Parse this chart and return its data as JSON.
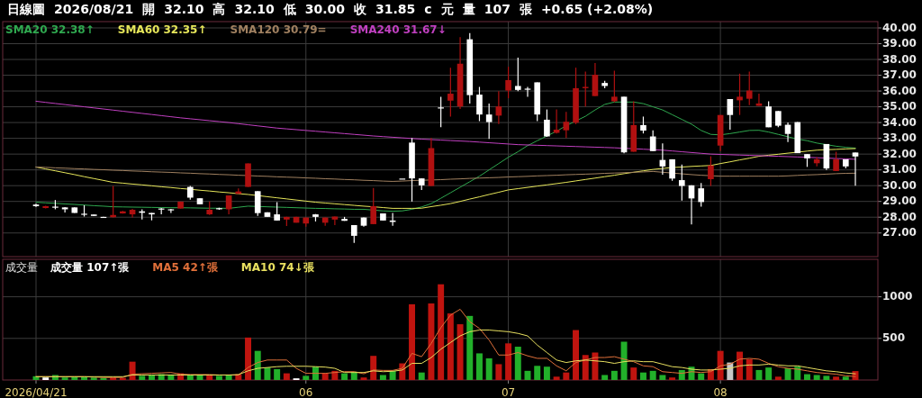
{
  "chart_data": [
    {
      "type": "candlestick",
      "categories": [
        "2026/04/21",
        null,
        null,
        null,
        null,
        null,
        null,
        null,
        null,
        null,
        null,
        null,
        null,
        null,
        null,
        null,
        null,
        null,
        null,
        null,
        null,
        null,
        null,
        null,
        null,
        null,
        null,
        null,
        "06",
        null,
        null,
        null,
        null,
        null,
        null,
        null,
        null,
        null,
        null,
        null,
        null,
        null,
        null,
        null,
        null,
        null,
        null,
        null,
        null,
        "07",
        null,
        null,
        null,
        null,
        null,
        null,
        null,
        null,
        null,
        null,
        null,
        null,
        null,
        null,
        null,
        null,
        null,
        null,
        null,
        null,
        null,
        "08",
        null,
        null,
        null,
        null,
        null,
        null,
        null,
        null,
        null,
        null,
        null,
        null,
        null,
        null
      ],
      "ohlc": [
        [
          28.8,
          28.85,
          28.65,
          28.7
        ],
        [
          28.58,
          28.72,
          28.56,
          28.7
        ],
        [
          28.67,
          29.09,
          28.5,
          28.64
        ],
        [
          28.62,
          28.64,
          28.3,
          28.5
        ],
        [
          28.62,
          28.62,
          28.27,
          28.27
        ],
        [
          28.22,
          28.76,
          28.04,
          28.18
        ],
        [
          28.17,
          28.17,
          28.08,
          28.08
        ],
        [
          28.02,
          28.02,
          27.99,
          27.99
        ],
        [
          28.0,
          29.98,
          27.99,
          28.14
        ],
        [
          28.24,
          28.4,
          28.22,
          28.37
        ],
        [
          28.18,
          28.52,
          27.98,
          28.47
        ],
        [
          28.37,
          28.5,
          27.85,
          28.28
        ],
        [
          28.27,
          28.27,
          27.8,
          28.18
        ],
        [
          28.55,
          28.58,
          28.18,
          28.52
        ],
        [
          28.5,
          28.52,
          28.27,
          28.47
        ],
        [
          28.55,
          28.99,
          28.55,
          28.99
        ],
        [
          29.92,
          29.98,
          29.11,
          29.24
        ],
        [
          29.2,
          29.2,
          28.82,
          28.82
        ],
        [
          28.18,
          28.99,
          28.14,
          28.47
        ],
        [
          28.57,
          28.6,
          28.47,
          28.5
        ],
        [
          28.5,
          29.38,
          28.18,
          29.38
        ],
        [
          29.48,
          29.83,
          29.48,
          29.63
        ],
        [
          29.92,
          31.41,
          29.92,
          31.41
        ],
        [
          29.65,
          29.65,
          28.08,
          28.26
        ],
        [
          28.31,
          28.31,
          28.02,
          28.02
        ],
        [
          28.18,
          28.95,
          27.79,
          27.79
        ],
        [
          27.85,
          28.02,
          27.44,
          28.02
        ],
        [
          27.65,
          28.02,
          27.65,
          28.02
        ],
        [
          27.6,
          27.98,
          27.4,
          27.98
        ],
        [
          28.18,
          28.2,
          27.73,
          28.02
        ],
        [
          27.65,
          27.98,
          27.46,
          27.98
        ],
        [
          27.85,
          28.04,
          27.5,
          28.04
        ],
        [
          27.89,
          28.02,
          27.77,
          27.77
        ],
        [
          27.5,
          27.5,
          26.37,
          26.82
        ],
        [
          27.98,
          27.98,
          27.4,
          27.46
        ],
        [
          27.56,
          29.86,
          27.56,
          28.7
        ],
        [
          28.24,
          28.24,
          27.79,
          27.79
        ],
        [
          27.79,
          28.27,
          27.46,
          27.7
        ],
        [
          30.45,
          30.45,
          30.45,
          30.45
        ],
        [
          32.73,
          33.02,
          28.99,
          30.46
        ],
        [
          30.46,
          30.46,
          29.73,
          30.02
        ],
        [
          29.98,
          33.02,
          29.98,
          32.38
        ],
        [
          34.96,
          35.64,
          33.7,
          34.9
        ],
        [
          35.39,
          37.48,
          34.38,
          35.83
        ],
        [
          35.02,
          39.42,
          34.86,
          37.73
        ],
        [
          39.28,
          39.67,
          35.21,
          35.74
        ],
        [
          35.77,
          36.26,
          34.09,
          34.51
        ],
        [
          34.51,
          35.21,
          32.96,
          34.03
        ],
        [
          34.44,
          35.99,
          33.9,
          35.02
        ],
        [
          36.03,
          37.54,
          35.54,
          36.69
        ],
        [
          36.32,
          38.12,
          35.99,
          36.07
        ],
        [
          36.15,
          36.26,
          35.64,
          36.1
        ],
        [
          36.55,
          36.55,
          34.09,
          34.51
        ],
        [
          34.18,
          34.83,
          33.1,
          33.12
        ],
        [
          33.35,
          34.83,
          33.31,
          33.55
        ],
        [
          33.51,
          34.67,
          33.02,
          34.05
        ],
        [
          33.99,
          37.48,
          33.9,
          36.18
        ],
        [
          36.18,
          37.23,
          35.02,
          36.26
        ],
        [
          35.68,
          37.77,
          35.68,
          37.03
        ],
        [
          36.51,
          36.65,
          36.18,
          36.32
        ],
        [
          35.35,
          37.29,
          35.29,
          35.64
        ],
        [
          35.64,
          35.64,
          32.05,
          32.11
        ],
        [
          32.15,
          35.35,
          32.15,
          33.84
        ],
        [
          33.84,
          34.38,
          33.31,
          33.49
        ],
        [
          33.12,
          33.51,
          32.19,
          32.19
        ],
        [
          31.63,
          32.68,
          30.7,
          31.22
        ],
        [
          31.67,
          31.67,
          30.31,
          30.45
        ],
        [
          30.35,
          31.34,
          29.05,
          29.98
        ],
        [
          30.02,
          30.02,
          27.54,
          29.19
        ],
        [
          29.83,
          30.16,
          28.67,
          28.96
        ],
        [
          30.41,
          31.86,
          29.98,
          31.28
        ],
        [
          32.54,
          34.48,
          32.19,
          34.48
        ],
        [
          35.49,
          35.49,
          33.55,
          34.48
        ],
        [
          35.41,
          37.1,
          34.48,
          35.64
        ],
        [
          35.51,
          37.23,
          35.1,
          36.03
        ],
        [
          35.06,
          35.84,
          35.06,
          35.21
        ],
        [
          35.02,
          35.35,
          33.7,
          33.7
        ],
        [
          34.73,
          34.73,
          33.7,
          33.8
        ],
        [
          33.86,
          34.0,
          32.77,
          33.28
        ],
        [
          34.03,
          34.03,
          32.06,
          32.06
        ],
        [
          32.0,
          32.0,
          31.19,
          31.73
        ],
        [
          31.42,
          31.81,
          31.22,
          31.67
        ],
        [
          32.64,
          32.64,
          31.0,
          31.09
        ],
        [
          30.93,
          32.15,
          30.93,
          31.67
        ],
        [
          31.67,
          31.67,
          31.09,
          31.22
        ],
        [
          32.1,
          32.1,
          30.0,
          31.85
        ]
      ],
      "series": [
        {
          "name": "SMA20 32.38↑",
          "type": "line",
          "color": "#2fa84f",
          "values": [
            28.95,
            28.91,
            28.88,
            28.84,
            28.81,
            28.77,
            28.73,
            28.7,
            28.66,
            28.65,
            28.64,
            28.63,
            28.62,
            28.61,
            28.6,
            28.6,
            28.59,
            28.58,
            28.57,
            28.57,
            28.56,
            28.63,
            28.7,
            28.68,
            28.66,
            28.64,
            28.62,
            28.6,
            28.58,
            28.56,
            28.55,
            28.53,
            28.52,
            28.5,
            28.5,
            28.45,
            28.4,
            28.38,
            28.4,
            28.5,
            28.65,
            28.86,
            29.2,
            29.55,
            29.9,
            30.25,
            30.6,
            31.0,
            31.4,
            31.8,
            32.15,
            32.54,
            32.85,
            33.15,
            33.45,
            33.8,
            34.1,
            34.4,
            34.8,
            35.15,
            35.3,
            35.3,
            35.3,
            35.2,
            35.0,
            34.8,
            34.5,
            34.2,
            33.9,
            33.5,
            33.25,
            33.22,
            33.3,
            33.4,
            33.5,
            33.51,
            33.4,
            33.25,
            33.1,
            32.95,
            32.85,
            32.7,
            32.6,
            32.5,
            32.43,
            32.38
          ]
        },
        {
          "name": "SMA60 32.35↑",
          "type": "line",
          "color": "#e6e65a",
          "values": [
            31.18,
            31.06,
            30.94,
            30.82,
            30.7,
            30.57,
            30.45,
            30.33,
            30.21,
            30.16,
            30.1,
            30.05,
            29.99,
            29.93,
            29.88,
            29.82,
            29.77,
            29.71,
            29.66,
            29.6,
            29.55,
            29.49,
            29.44,
            29.37,
            29.3,
            29.23,
            29.16,
            29.09,
            29.02,
            28.95,
            28.9,
            28.85,
            28.8,
            28.75,
            28.7,
            28.66,
            28.61,
            28.56,
            28.56,
            28.56,
            28.57,
            28.67,
            28.76,
            28.86,
            29.0,
            29.15,
            29.29,
            29.44,
            29.58,
            29.73,
            29.81,
            29.89,
            29.97,
            30.05,
            30.13,
            30.21,
            30.3,
            30.39,
            30.48,
            30.57,
            30.66,
            30.76,
            30.85,
            30.94,
            31.03,
            31.09,
            31.15,
            31.18,
            31.22,
            31.25,
            31.28,
            31.4,
            31.51,
            31.63,
            31.74,
            31.86,
            31.93,
            31.99,
            32.06,
            32.12,
            32.19,
            32.25,
            32.28,
            32.3,
            32.33,
            32.35
          ]
        },
        {
          "name": "SMA120 30.79=",
          "type": "line",
          "color": "#a08060",
          "values": [
            31.18,
            31.16,
            31.13,
            31.11,
            31.08,
            31.06,
            31.03,
            31.01,
            30.98,
            30.96,
            30.93,
            30.91,
            30.88,
            30.86,
            30.84,
            30.81,
            30.79,
            30.76,
            30.74,
            30.71,
            30.69,
            30.66,
            30.64,
            30.61,
            30.59,
            30.56,
            30.54,
            30.52,
            30.49,
            30.47,
            30.44,
            30.42,
            30.39,
            30.37,
            30.34,
            30.32,
            30.29,
            30.27,
            30.29,
            30.32,
            30.34,
            30.36,
            30.38,
            30.41,
            30.43,
            30.46,
            30.48,
            30.5,
            30.52,
            30.55,
            30.57,
            30.59,
            30.62,
            30.64,
            30.66,
            30.69,
            30.71,
            30.73,
            30.75,
            30.78,
            30.8,
            30.82,
            30.85,
            30.87,
            30.9,
            30.85,
            30.8,
            30.75,
            30.7,
            30.66,
            30.63,
            30.6,
            30.6,
            30.6,
            30.6,
            30.6,
            30.6,
            30.6,
            30.62,
            30.65,
            30.68,
            30.7,
            30.73,
            30.76,
            30.78,
            30.79
          ]
        },
        {
          "name": "SMA240 31.67↓",
          "type": "line",
          "color": "#c040c0",
          "values": [
            35.35,
            35.28,
            35.21,
            35.14,
            35.07,
            35.0,
            34.93,
            34.86,
            34.79,
            34.72,
            34.65,
            34.58,
            34.51,
            34.44,
            34.37,
            34.3,
            34.24,
            34.18,
            34.12,
            34.06,
            34.0,
            33.93,
            33.86,
            33.79,
            33.72,
            33.65,
            33.6,
            33.55,
            33.5,
            33.45,
            33.4,
            33.35,
            33.3,
            33.25,
            33.2,
            33.15,
            33.11,
            33.07,
            33.03,
            32.99,
            32.95,
            32.92,
            32.89,
            32.86,
            32.83,
            32.8,
            32.76,
            32.72,
            32.68,
            32.64,
            32.6,
            32.58,
            32.56,
            32.54,
            32.52,
            32.5,
            32.48,
            32.46,
            32.44,
            32.42,
            32.4,
            32.37,
            32.34,
            32.31,
            32.28,
            32.25,
            32.2,
            32.15,
            32.1,
            32.05,
            32.0,
            31.98,
            31.96,
            31.94,
            31.92,
            31.9,
            31.88,
            31.86,
            31.84,
            31.82,
            31.8,
            31.77,
            31.75,
            31.72,
            31.7,
            31.67
          ]
        }
      ],
      "ylim": [
        25.5,
        40.4
      ],
      "yticks": [
        {
          "value": 27,
          "label": "27.00"
        },
        {
          "value": 28,
          "label": "28.00"
        },
        {
          "value": 29,
          "label": "29.00"
        },
        {
          "value": 30,
          "label": "30.00"
        },
        {
          "value": 31,
          "label": "31.00"
        },
        {
          "value": 32,
          "label": "32.00"
        },
        {
          "value": 33,
          "label": "33.00"
        },
        {
          "value": 34,
          "label": "34.00"
        },
        {
          "value": 35,
          "label": "35.00"
        },
        {
          "value": 36,
          "label": "36.00"
        },
        {
          "value": 37,
          "label": "37.00"
        },
        {
          "value": 38,
          "label": "38.00"
        },
        {
          "value": 39,
          "label": "39.00"
        },
        {
          "value": 40,
          "label": "40.00"
        }
      ],
      "grid": true,
      "legend": "top left",
      "tick_labels": "y",
      "annotations": [
        "日線圖",
        "2026/08/21",
        "開",
        "32.10",
        "高",
        "32.10",
        "低",
        "30.00",
        "收",
        "31.85",
        "c",
        "元",
        "量",
        "107",
        "張",
        "+0.65 (+2.08%)"
      ]
    },
    {
      "type": "bar",
      "title": "成交量",
      "categories": [
        "2026/04/21",
        null,
        null,
        null,
        null,
        null,
        null,
        null,
        null,
        null,
        null,
        null,
        null,
        null,
        null,
        null,
        null,
        null,
        null,
        null,
        null,
        null,
        null,
        null,
        null,
        null,
        null,
        null,
        "06",
        null,
        null,
        null,
        null,
        null,
        null,
        null,
        null,
        null,
        null,
        null,
        null,
        null,
        null,
        null,
        null,
        null,
        null,
        null,
        null,
        "07",
        null,
        null,
        null,
        null,
        null,
        null,
        null,
        null,
        null,
        null,
        null,
        null,
        null,
        null,
        null,
        null,
        null,
        null,
        null,
        null,
        null,
        "08",
        null,
        null,
        null,
        null,
        null,
        null,
        null,
        null,
        null,
        null,
        null,
        null,
        null,
        null
      ],
      "series": [
        {
          "name": "成交量 107↑張",
          "values": [
            45,
            30,
            60,
            30,
            35,
            35,
            30,
            25,
            30,
            25,
            220,
            50,
            60,
            70,
            60,
            80,
            60,
            60,
            60,
            50,
            60,
            70,
            510,
            350,
            150,
            130,
            80,
            20,
            50,
            160,
            80,
            110,
            80,
            100,
            30,
            290,
            60,
            110,
            200,
            910,
            90,
            920,
            1150,
            800,
            670,
            770,
            320,
            260,
            190,
            440,
            400,
            110,
            170,
            160,
            40,
            90,
            600,
            300,
            330,
            60,
            110,
            460,
            150,
            90,
            110,
            60,
            30,
            120,
            160,
            80,
            130,
            350,
            210,
            340,
            250,
            120,
            150,
            40,
            140,
            160,
            70,
            60,
            50,
            40,
            40,
            107
          ],
          "colors": [
            "#22b02a",
            "#ffffff",
            "#22b02a",
            "#22b02a",
            "#22b02a",
            "#22b02a",
            "#22b02a",
            "#22b02a",
            "#c0140f",
            "#c0140f",
            "#c0140f",
            "#22b02a",
            "#22b02a",
            "#22b02a",
            "#22b02a",
            "#c0140f",
            "#22b02a",
            "#22b02a",
            "#c0140f",
            "#22b02a",
            "#22b02a",
            "#c0140f",
            "#c0140f",
            "#22b02a",
            "#22b02a",
            "#22b02a",
            "#c0140f",
            "#ffffff",
            "#22b02a",
            "#22b02a",
            "#c0140f",
            "#c0140f",
            "#22b02a",
            "#22b02a",
            "#c0140f",
            "#c0140f",
            "#22b02a",
            "#22b02a",
            "#c0140f",
            "#c0140f",
            "#22b02a",
            "#c0140f",
            "#c0140f",
            "#c0140f",
            "#c0140f",
            "#22b02a",
            "#22b02a",
            "#22b02a",
            "#c0140f",
            "#c0140f",
            "#22b02a",
            "#22b02a",
            "#22b02a",
            "#22b02a",
            "#c0140f",
            "#c0140f",
            "#c0140f",
            "#c0140f",
            "#c0140f",
            "#22b02a",
            "#22b02a",
            "#22b02a",
            "#c0140f",
            "#22b02a",
            "#22b02a",
            "#22b02a",
            "#c0140f",
            "#22b02a",
            "#22b02a",
            "#22b02a",
            "#c0140f",
            "#c0140f",
            "#c8c8c8",
            "#c0140f",
            "#c0140f",
            "#22b02a",
            "#22b02a",
            "#c0140f",
            "#22b02a",
            "#22b02a",
            "#22b02a",
            "#22b02a",
            "#22b02a",
            "#c0140f",
            "#22b02a",
            "#c0140f"
          ]
        },
        {
          "name": "MA5 42↑張",
          "type": "line",
          "color": "#e0703a",
          "values": [
            40,
            40,
            40,
            40,
            40,
            40,
            35,
            30,
            30,
            30,
            70,
            75,
            80,
            85,
            90,
            70,
            65,
            65,
            65,
            60,
            60,
            60,
            150,
            210,
            240,
            240,
            240,
            140,
            80,
            80,
            80,
            90,
            100,
            100,
            75,
            120,
            115,
            115,
            140,
            320,
            280,
            440,
            630,
            780,
            850,
            700,
            620,
            480,
            300,
            300,
            330,
            290,
            260,
            260,
            170,
            110,
            210,
            240,
            270,
            270,
            280,
            250,
            220,
            170,
            160,
            100,
            90,
            80,
            100,
            90,
            100,
            170,
            190,
            250,
            260,
            250,
            200,
            160,
            140,
            130,
            110,
            90,
            80,
            70,
            50,
            42
          ]
        },
        {
          "name": "MA10 74↓張",
          "type": "line",
          "color": "#e8e060",
          "values": [
            40,
            40,
            40,
            40,
            40,
            40,
            40,
            40,
            40,
            40,
            60,
            60,
            60,
            60,
            60,
            60,
            60,
            60,
            60,
            60,
            60,
            65,
            110,
            140,
            150,
            160,
            165,
            165,
            165,
            160,
            155,
            140,
            90,
            90,
            90,
            110,
            100,
            105,
            120,
            200,
            200,
            270,
            370,
            450,
            530,
            580,
            600,
            600,
            590,
            580,
            560,
            530,
            420,
            330,
            240,
            210,
            230,
            240,
            230,
            220,
            200,
            220,
            230,
            220,
            220,
            190,
            160,
            150,
            130,
            120,
            120,
            130,
            140,
            170,
            180,
            180,
            190,
            180,
            170,
            170,
            150,
            130,
            110,
            100,
            85,
            74
          ]
        }
      ],
      "ylim": [
        0,
        1450
      ],
      "yticks": [
        500,
        1000
      ],
      "grid": true,
      "legend": "top left"
    }
  ]
}
